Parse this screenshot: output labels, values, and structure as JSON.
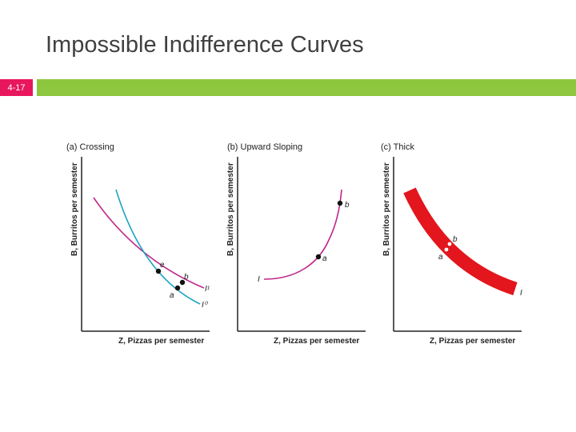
{
  "slide": {
    "title": "Impossible Indifference Curves",
    "number": "4-17"
  },
  "colors": {
    "accent_pink": "#e8175d",
    "accent_green": "#8dc63f",
    "curve_magenta": "#c0268a",
    "curve_cyan": "#1ba3c6",
    "curve_red": "#e2161c"
  },
  "panels": [
    {
      "title": "(a) Crossing",
      "xlabel": "Z, Pizzas per semester",
      "ylabel": "B, Burritos per semester",
      "points": [
        "e",
        "b",
        "a"
      ],
      "curves": [
        "I¹",
        "I⁰"
      ]
    },
    {
      "title": "(b) Upward Sloping",
      "xlabel": "Z, Pizzas per semester",
      "ylabel": "B, Burritos per semester",
      "points": [
        "b",
        "a"
      ],
      "curves": [
        "I"
      ]
    },
    {
      "title": "(c) Thick",
      "xlabel": "Z, Pizzas per semester",
      "ylabel": "B, Burritos per semester",
      "points": [
        "b",
        "a"
      ],
      "curves": [
        "I"
      ]
    }
  ]
}
